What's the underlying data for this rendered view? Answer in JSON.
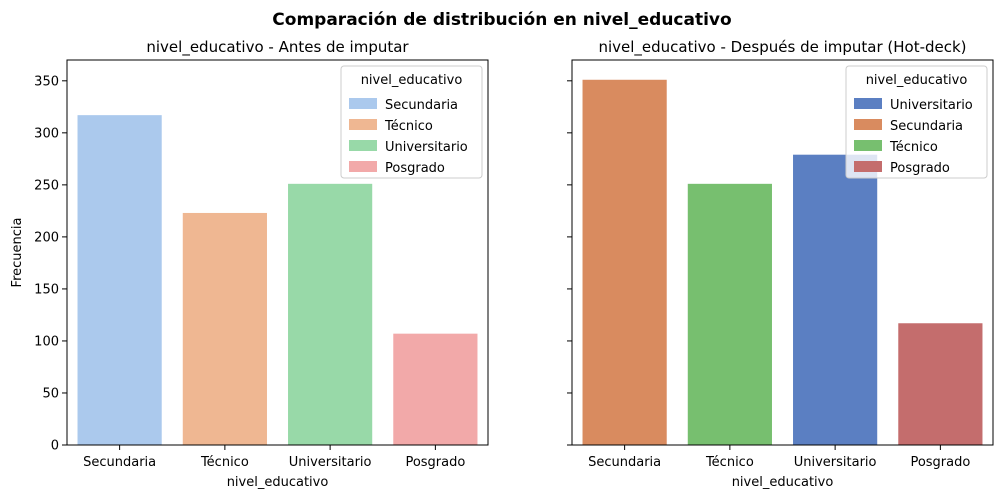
{
  "figure": {
    "title": "Comparación de distribución en nivel_educativo"
  },
  "chart_data": [
    {
      "type": "bar",
      "title": "nivel_educativo - Antes de imputar",
      "xlabel": "nivel_educativo",
      "ylabel": "Frecuencia",
      "ylim": [
        0,
        370
      ],
      "yticks": [
        0,
        50,
        100,
        150,
        200,
        250,
        300,
        350
      ],
      "categories": [
        "Secundaria",
        "Técnico",
        "Universitario",
        "Posgrado"
      ],
      "values": [
        317,
        223,
        251,
        107
      ],
      "colors": [
        "#abc9ed",
        "#efb792",
        "#98d9a8",
        "#f2a9a9"
      ],
      "grid": false,
      "legend": {
        "title": "nivel_educativo",
        "position": "top-right",
        "entries": [
          {
            "label": "Secundaria",
            "color": "#abc9ed"
          },
          {
            "label": "Técnico",
            "color": "#efb792"
          },
          {
            "label": "Universitario",
            "color": "#98d9a8"
          },
          {
            "label": "Posgrado",
            "color": "#f2a9a9"
          }
        ]
      }
    },
    {
      "type": "bar",
      "title": "nivel_educativo - Después de imputar (Hot-deck)",
      "xlabel": "nivel_educativo",
      "ylabel": "",
      "ylim": [
        0,
        370
      ],
      "yticks": [
        0,
        50,
        100,
        150,
        200,
        250,
        300,
        350
      ],
      "categories": [
        "Secundaria",
        "Técnico",
        "Universitario",
        "Posgrado"
      ],
      "values": [
        351,
        251,
        279,
        117
      ],
      "colors": [
        "#d98b5f",
        "#77bf6f",
        "#5b7fc2",
        "#c46d6d"
      ],
      "grid": false,
      "legend": {
        "title": "nivel_educativo",
        "position": "top-right",
        "entries": [
          {
            "label": "Universitario",
            "color": "#5b7fc2"
          },
          {
            "label": "Secundaria",
            "color": "#d98b5f"
          },
          {
            "label": "Técnico",
            "color": "#77bf6f"
          },
          {
            "label": "Posgrado",
            "color": "#c46d6d"
          }
        ]
      }
    }
  ]
}
